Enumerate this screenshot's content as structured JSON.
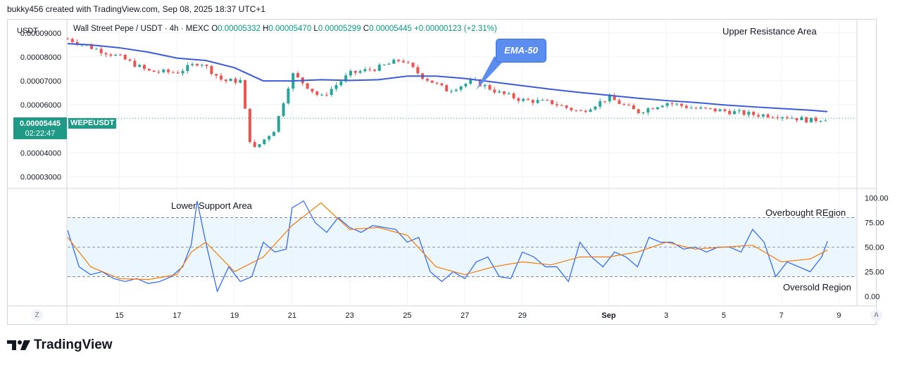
{
  "header": {
    "credit": "bukky456 created with TradingView.com, Sep 08, 2025 18:37 UTC+1"
  },
  "legend": {
    "symbol": "Wall Street Pepe / USDT · 4h · MEXC",
    "o_label": "O",
    "o": "0.00005332",
    "h_label": "H",
    "h": "0.00005470",
    "l_label": "L",
    "l": "0.00005299",
    "c_label": "C",
    "c": "0.00005445",
    "change": "+0.00000123 (+2.31%)"
  },
  "price_axis": {
    "unit": "USDT",
    "current_price": "0.00005445",
    "countdown": "02:22:47",
    "symbol_tag": "WEPEUSDT"
  },
  "annotations": {
    "ema_label": "EMA-50",
    "upper_resistance": "Upper Resistance Area",
    "lower_support": "Lower Support Area",
    "overbought": "Overbought REgion",
    "oversold": "Oversold Region"
  },
  "axis_buttons": {
    "left": "Z",
    "right": "A"
  },
  "brand": "TradingView",
  "colors": {
    "up": "#26a69a",
    "down": "#ef5350",
    "ema": "#3b5bdb",
    "rsi": "#2962ff",
    "rsi_ma": "#f57c00",
    "band": "#e3f2fd"
  },
  "chart_data": [
    {
      "type": "candlestick",
      "title": "Wall Street Pepe / USDT · 4h · MEXC",
      "ylabel": "USDT",
      "ylim": [
        2.55e-05,
        9.55e-05
      ],
      "y_ticks": [
        "0.00009000",
        "0.00008000",
        "0.00007000",
        "0.00006000",
        "0.00004000",
        "0.00003000"
      ],
      "y_tick_values": [
        9e-05,
        8e-05,
        7e-05,
        6e-05,
        4e-05,
        3e-05
      ],
      "x_ticks": [
        "15",
        "17",
        "19",
        "21",
        "23",
        "25",
        "27",
        "29",
        "Sep",
        "3",
        "5",
        "7",
        "9"
      ],
      "x_tick_days": [
        15,
        17,
        19,
        21,
        23,
        25,
        27,
        29,
        32,
        34,
        36,
        38,
        40
      ],
      "x_range_days": [
        13.2,
        40.6
      ],
      "current_price": 5.445e-05,
      "series": [
        {
          "name": "EMA-50",
          "x": [
            13.2,
            14,
            15,
            16,
            17,
            17.5,
            18,
            19,
            20,
            21,
            22,
            23,
            24,
            25,
            26,
            27,
            28,
            29,
            30,
            31,
            32,
            33,
            34,
            35,
            36,
            37,
            38,
            39,
            39.6
          ],
          "values": [
            8.55e-05,
            8.5e-05,
            8.38e-05,
            8.2e-05,
            7.95e-05,
            7.9e-05,
            7.85e-05,
            7.55e-05,
            7e-05,
            7e-05,
            7.05e-05,
            7.02e-05,
            7.05e-05,
            7.2e-05,
            7.2e-05,
            7.1e-05,
            6.95e-05,
            6.8e-05,
            6.65e-05,
            6.52e-05,
            6.4e-05,
            6.28e-05,
            6.18e-05,
            6.1e-05,
            6e-05,
            5.92e-05,
            5.85e-05,
            5.78e-05,
            5.72e-05
          ]
        }
      ],
      "candles_key_points": {
        "x": [
          13.2,
          14,
          15,
          16,
          17,
          17.8,
          18.6,
          19.2,
          19.6,
          20.4,
          21,
          22,
          23,
          24,
          24.8,
          25.5,
          26.4,
          27.3,
          28.2,
          29,
          30,
          31,
          32,
          33,
          34,
          35,
          36,
          37,
          38,
          39,
          39.6
        ],
        "values": [
          8.75e-05,
          8.4e-05,
          8e-05,
          7.4e-05,
          7.35e-05,
          7.8e-05,
          7e-05,
          7e-05,
          4.05e-05,
          5e-05,
          7.3e-05,
          6.3e-05,
          7.3e-05,
          7.55e-05,
          7.9e-05,
          7.2e-05,
          6.6e-05,
          7e-05,
          6.5e-05,
          6.2e-05,
          6.1e-05,
          5.7e-05,
          6.3e-05,
          5.7e-05,
          6.1e-05,
          5.85e-05,
          5.75e-05,
          5.6e-05,
          5.55e-05,
          5.35e-05,
          5.45e-05
        ]
      }
    },
    {
      "type": "line",
      "title": "RSI",
      "ylim": [
        -9,
        109
      ],
      "y_ticks": [
        "100.00",
        "75.00",
        "50.00",
        "25.00",
        "0.00"
      ],
      "y_tick_values": [
        100,
        75,
        50,
        25,
        0
      ],
      "bands": [
        80,
        50,
        20
      ],
      "x_range_days": [
        13.2,
        40.6
      ],
      "series": [
        {
          "name": "RSI",
          "x": [
            13.2,
            13.6,
            14,
            14.4,
            14.8,
            15.2,
            15.6,
            16,
            16.4,
            16.8,
            17.2,
            17.5,
            17.7,
            18,
            18.4,
            18.8,
            19.2,
            19.6,
            20,
            20.4,
            20.8,
            21,
            21.4,
            21.8,
            22.2,
            22.6,
            23,
            23.4,
            23.8,
            24.2,
            24.6,
            25,
            25.4,
            25.8,
            26.2,
            26.6,
            27,
            27.4,
            27.8,
            28.2,
            28.6,
            29,
            29.4,
            29.8,
            30.2,
            30.6,
            31,
            31.4,
            31.8,
            32.2,
            32.6,
            33,
            33.4,
            33.8,
            34.2,
            34.6,
            35,
            35.4,
            35.8,
            36.2,
            36.6,
            37,
            37.4,
            37.8,
            38.2,
            38.6,
            39,
            39.4,
            39.6
          ],
          "values": [
            67,
            30,
            22,
            25,
            18,
            15,
            18,
            13,
            15,
            20,
            30,
            53,
            97,
            55,
            5,
            30,
            15,
            20,
            55,
            45,
            48,
            90,
            97,
            75,
            65,
            80,
            70,
            65,
            72,
            70,
            68,
            55,
            60,
            25,
            15,
            25,
            18,
            35,
            40,
            20,
            18,
            45,
            40,
            30,
            30,
            15,
            55,
            40,
            30,
            45,
            40,
            30,
            60,
            55,
            55,
            48,
            50,
            45,
            50,
            50,
            45,
            68,
            55,
            20,
            35,
            30,
            25,
            40,
            56
          ]
        },
        {
          "name": "RSI-MA",
          "x": [
            13.2,
            14,
            15,
            16,
            17,
            17.5,
            18,
            19,
            20,
            21,
            22,
            23,
            24,
            25,
            26,
            27,
            28,
            29,
            30,
            31,
            32,
            33,
            34,
            35,
            36,
            37,
            38,
            39,
            39.6
          ],
          "values": [
            60,
            30,
            18,
            17,
            22,
            45,
            55,
            25,
            40,
            72,
            95,
            68,
            70,
            62,
            30,
            22,
            30,
            35,
            32,
            40,
            40,
            45,
            55,
            48,
            50,
            52,
            35,
            38,
            47
          ]
        }
      ]
    }
  ]
}
